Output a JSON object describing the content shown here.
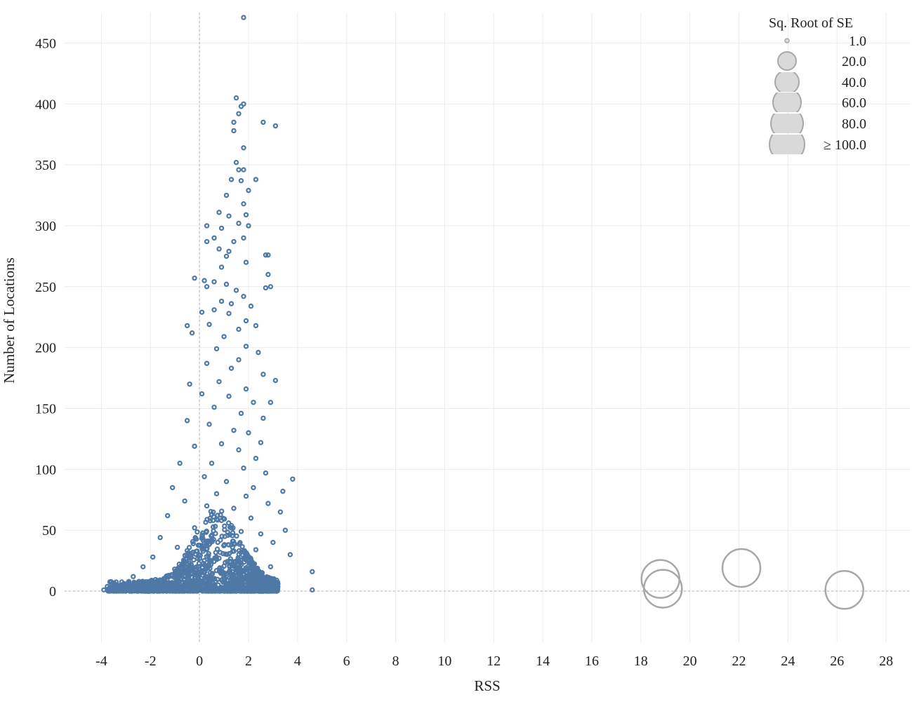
{
  "chart_data": {
    "type": "scatter",
    "xlabel": "RSS",
    "ylabel": "Number of Locations",
    "xlim": [
      -5.5,
      29
    ],
    "ylim": [
      -42,
      475
    ],
    "x_ticks": [
      "-4",
      "-2",
      "0",
      "2",
      "4",
      "6",
      "8",
      "10",
      "12",
      "14",
      "16",
      "18",
      "20",
      "22",
      "24",
      "26",
      "28"
    ],
    "y_ticks": [
      "0",
      "50",
      "100",
      "150",
      "200",
      "250",
      "300",
      "350",
      "400",
      "450"
    ],
    "grid": true,
    "zero_lines": true,
    "colors": {
      "points": "#4e79a7",
      "outliers": "#a8a8a8",
      "legend_fill": "#d9d9d9",
      "grid": "#ececec"
    },
    "legend": {
      "title": "Sq. Root of SE",
      "position": "top-right",
      "items": [
        {
          "label": "1.0",
          "value": 1
        },
        {
          "label": "20.0",
          "value": 20
        },
        {
          "label": "40.0",
          "value": 40
        },
        {
          "label": "60.0",
          "value": 60
        },
        {
          "label": "80.0",
          "value": 80
        },
        {
          "label": "≥ 100.0",
          "value": 100
        }
      ]
    },
    "series": [
      {
        "description_size_encoding": "marker size by Sq. Root of SE",
        "points": [
          [
            1.8,
            471
          ],
          [
            1.5,
            405
          ],
          [
            1.8,
            400
          ],
          [
            1.7,
            398
          ],
          [
            1.6,
            392
          ],
          [
            1.4,
            385
          ],
          [
            2.6,
            385
          ],
          [
            3.1,
            382
          ],
          [
            1.4,
            378
          ],
          [
            1.8,
            364
          ],
          [
            1.5,
            352
          ],
          [
            1.6,
            346
          ],
          [
            1.8,
            346
          ],
          [
            2.3,
            338
          ],
          [
            1.3,
            338
          ],
          [
            1.7,
            337
          ],
          [
            2.0,
            329
          ],
          [
            1.1,
            325
          ],
          [
            1.8,
            318
          ],
          [
            0.8,
            311
          ],
          [
            1.2,
            308
          ],
          [
            2.0,
            300
          ],
          [
            1.9,
            309
          ],
          [
            0.3,
            300
          ],
          [
            0.9,
            298
          ],
          [
            1.6,
            302
          ],
          [
            0.6,
            290
          ],
          [
            0.3,
            287
          ],
          [
            1.4,
            287
          ],
          [
            1.8,
            290
          ],
          [
            0.8,
            281
          ],
          [
            1.2,
            279
          ],
          [
            2.7,
            276
          ],
          [
            2.8,
            276
          ],
          [
            1.1,
            275
          ],
          [
            1.9,
            270
          ],
          [
            0.9,
            266
          ],
          [
            2.8,
            260
          ],
          [
            0.2,
            255
          ],
          [
            -0.2,
            257
          ],
          [
            0.6,
            254
          ],
          [
            1.1,
            252
          ],
          [
            2.7,
            249
          ],
          [
            2.9,
            250
          ],
          [
            0.3,
            250
          ],
          [
            1.5,
            247
          ],
          [
            1.8,
            242
          ],
          [
            0.9,
            238
          ],
          [
            1.3,
            236
          ],
          [
            2.1,
            234
          ],
          [
            0.6,
            231
          ],
          [
            0.1,
            229
          ],
          [
            1.2,
            228
          ],
          [
            1.9,
            222
          ],
          [
            0.4,
            219
          ],
          [
            -0.5,
            218
          ],
          [
            1.6,
            215
          ],
          [
            2.3,
            218
          ],
          [
            -0.3,
            212
          ],
          [
            1.0,
            209
          ],
          [
            1.9,
            201
          ],
          [
            0.7,
            199
          ],
          [
            2.4,
            196
          ],
          [
            1.6,
            190
          ],
          [
            0.3,
            187
          ],
          [
            1.3,
            183
          ],
          [
            2.6,
            178
          ],
          [
            3.1,
            173
          ],
          [
            0.8,
            172
          ],
          [
            -0.4,
            170
          ],
          [
            1.9,
            166
          ],
          [
            0.1,
            162
          ],
          [
            1.2,
            160
          ],
          [
            2.2,
            155
          ],
          [
            2.9,
            155
          ],
          [
            0.6,
            151
          ],
          [
            1.7,
            146
          ],
          [
            2.6,
            142
          ],
          [
            -0.5,
            140
          ],
          [
            0.4,
            137
          ],
          [
            1.4,
            132
          ],
          [
            2.0,
            130
          ],
          [
            2.5,
            122
          ],
          [
            0.9,
            121
          ],
          [
            -0.2,
            119
          ],
          [
            1.6,
            116
          ],
          [
            2.3,
            109
          ],
          [
            0.5,
            105
          ],
          [
            -0.8,
            105
          ],
          [
            1.8,
            101
          ],
          [
            2.7,
            97
          ],
          [
            3.8,
            92
          ],
          [
            0.2,
            94
          ],
          [
            1.1,
            90
          ],
          [
            -1.1,
            85
          ],
          [
            2.2,
            85
          ],
          [
            3.4,
            82
          ],
          [
            0.7,
            80
          ],
          [
            1.9,
            78
          ],
          [
            -0.6,
            74
          ],
          [
            2.8,
            72
          ],
          [
            0.3,
            70
          ],
          [
            1.4,
            68
          ],
          [
            3.3,
            65
          ],
          [
            -1.3,
            62
          ],
          [
            2.1,
            60
          ],
          [
            0.9,
            58
          ],
          [
            3.5,
            50
          ],
          [
            -0.2,
            52
          ],
          [
            1.7,
            49
          ],
          [
            2.5,
            47
          ],
          [
            -1.6,
            44
          ],
          [
            0.5,
            42
          ],
          [
            3.0,
            40
          ],
          [
            1.2,
            38
          ],
          [
            -0.9,
            36
          ],
          [
            2.3,
            34
          ],
          [
            3.7,
            30
          ],
          [
            -1.9,
            28
          ],
          [
            0.8,
            27
          ],
          [
            1.6,
            24
          ],
          [
            -2.3,
            20
          ],
          [
            2.9,
            20
          ],
          [
            4.6,
            16
          ],
          [
            -0.5,
            18
          ],
          [
            1.0,
            15
          ],
          [
            -2.7,
            12
          ],
          [
            2.0,
            12
          ],
          [
            0.4,
            10
          ],
          [
            -3.1,
            6
          ],
          [
            3.2,
            6
          ],
          [
            1.5,
            6
          ],
          [
            -3.5,
            3
          ],
          [
            -1.2,
            4
          ],
          [
            2.6,
            3
          ],
          [
            -3.9,
            1
          ],
          [
            4.6,
            1
          ],
          [
            -2.0,
            1
          ],
          [
            0.0,
            1
          ],
          [
            1.8,
            1
          ],
          [
            3.0,
            1
          ]
        ]
      }
    ],
    "outliers": [
      {
        "x": 18.8,
        "y": 10,
        "se": 100
      },
      {
        "x": 18.9,
        "y": 2,
        "se": 100
      },
      {
        "x": 22.1,
        "y": 19,
        "se": 100
      },
      {
        "x": 26.3,
        "y": 1,
        "se": 100
      }
    ]
  }
}
